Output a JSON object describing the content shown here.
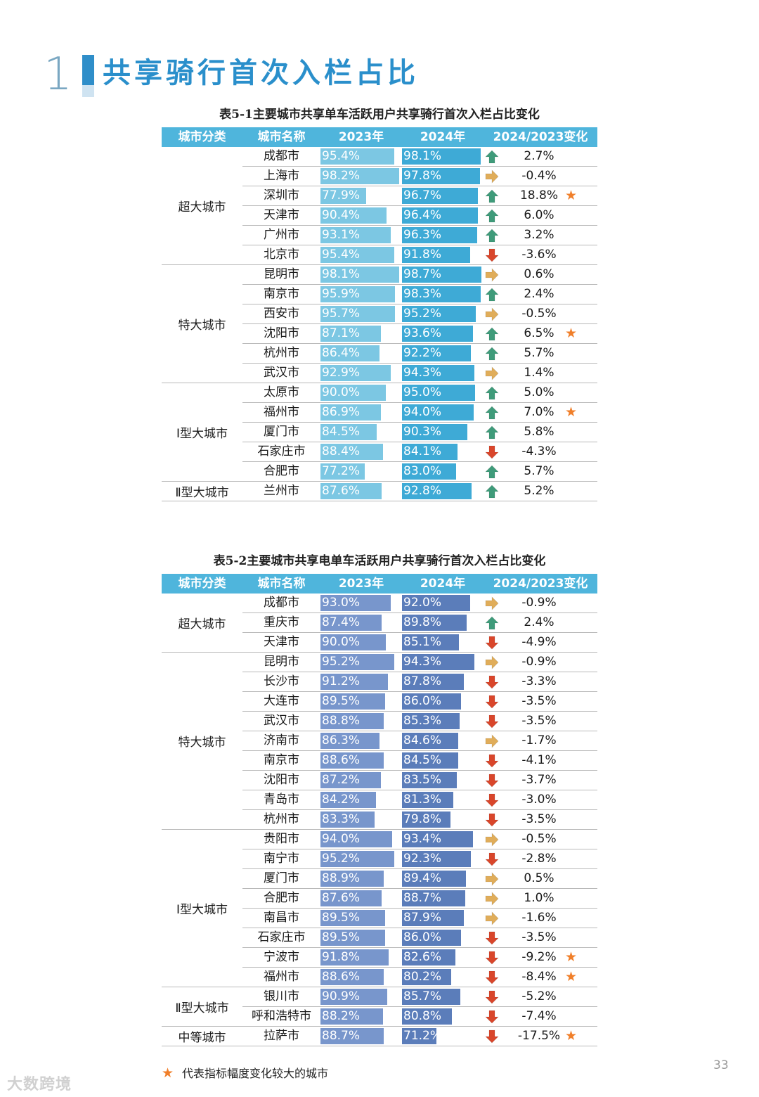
{
  "section": {
    "number": "1",
    "title": "共享骑行首次入栏占比"
  },
  "headers": [
    "城市分类",
    "城市名称",
    "2023年",
    "2024年",
    "2024/2023变化"
  ],
  "colors": {
    "header_bg": "#4fb5dc",
    "t1_bar_2023": "#7cc7e3",
    "t1_bar_2024": "#3eaad6",
    "t2_bar_2023": "#7896cc",
    "t2_bar_2024": "#5b7dba",
    "arrow_up": "#3f9b7a",
    "arrow_down": "#d9462b",
    "arrow_flat": "#e0ad5a",
    "star": "#f07f2a"
  },
  "table1": {
    "title": "表5-1主要城市共享单车活跃用户共享骑行首次入栏占比变化",
    "groups": [
      {
        "category": "超大城市",
        "rows": [
          {
            "city": "成都市",
            "y2023": "95.4%",
            "y2024": "98.1%",
            "change": "2.7%",
            "trend": "up",
            "star": false
          },
          {
            "city": "上海市",
            "y2023": "98.2%",
            "y2024": "97.8%",
            "change": "-0.4%",
            "trend": "flat",
            "star": false
          },
          {
            "city": "深圳市",
            "y2023": "77.9%",
            "y2024": "96.7%",
            "change": "18.8%",
            "trend": "up",
            "star": true
          },
          {
            "city": "天津市",
            "y2023": "90.4%",
            "y2024": "96.4%",
            "change": "6.0%",
            "trend": "up",
            "star": false
          },
          {
            "city": "广州市",
            "y2023": "93.1%",
            "y2024": "96.3%",
            "change": "3.2%",
            "trend": "up",
            "star": false
          },
          {
            "city": "北京市",
            "y2023": "95.4%",
            "y2024": "91.8%",
            "change": "-3.6%",
            "trend": "down",
            "star": false
          }
        ]
      },
      {
        "category": "特大城市",
        "rows": [
          {
            "city": "昆明市",
            "y2023": "98.1%",
            "y2024": "98.7%",
            "change": "0.6%",
            "trend": "flat",
            "star": false
          },
          {
            "city": "南京市",
            "y2023": "95.9%",
            "y2024": "98.3%",
            "change": "2.4%",
            "trend": "up",
            "star": false
          },
          {
            "city": "西安市",
            "y2023": "95.7%",
            "y2024": "95.2%",
            "change": "-0.5%",
            "trend": "flat",
            "star": false
          },
          {
            "city": "沈阳市",
            "y2023": "87.1%",
            "y2024": "93.6%",
            "change": "6.5%",
            "trend": "up",
            "star": true
          },
          {
            "city": "杭州市",
            "y2023": "86.4%",
            "y2024": "92.2%",
            "change": "5.7%",
            "trend": "up",
            "star": false
          },
          {
            "city": "武汉市",
            "y2023": "92.9%",
            "y2024": "94.3%",
            "change": "1.4%",
            "trend": "flat",
            "star": false
          }
        ]
      },
      {
        "category": "Ⅰ型大城市",
        "rows": [
          {
            "city": "太原市",
            "y2023": "90.0%",
            "y2024": "95.0%",
            "change": "5.0%",
            "trend": "up",
            "star": false
          },
          {
            "city": "福州市",
            "y2023": "86.9%",
            "y2024": "94.0%",
            "change": "7.0%",
            "trend": "up",
            "star": true
          },
          {
            "city": "厦门市",
            "y2023": "84.5%",
            "y2024": "90.3%",
            "change": "5.8%",
            "trend": "up",
            "star": false
          },
          {
            "city": "石家庄市",
            "y2023": "88.4%",
            "y2024": "84.1%",
            "change": "-4.3%",
            "trend": "down",
            "star": false
          },
          {
            "city": "合肥市",
            "y2023": "77.2%",
            "y2024": "83.0%",
            "change": "5.7%",
            "trend": "up",
            "star": false
          }
        ]
      },
      {
        "category": "Ⅱ型大城市",
        "rows": [
          {
            "city": "兰州市",
            "y2023": "87.6%",
            "y2024": "92.8%",
            "change": "5.2%",
            "trend": "up",
            "star": false
          }
        ]
      }
    ]
  },
  "table2": {
    "title": "表5-2主要城市共享电单车活跃用户共享骑行首次入栏占比变化",
    "groups": [
      {
        "category": "超大城市",
        "rows": [
          {
            "city": "成都市",
            "y2023": "93.0%",
            "y2024": "92.0%",
            "change": "-0.9%",
            "trend": "flat",
            "star": false
          },
          {
            "city": "重庆市",
            "y2023": "87.4%",
            "y2024": "89.8%",
            "change": "2.4%",
            "trend": "up",
            "star": false
          },
          {
            "city": "天津市",
            "y2023": "90.0%",
            "y2024": "85.1%",
            "change": "-4.9%",
            "trend": "down",
            "star": false
          }
        ]
      },
      {
        "category": "特大城市",
        "rows": [
          {
            "city": "昆明市",
            "y2023": "95.2%",
            "y2024": "94.3%",
            "change": "-0.9%",
            "trend": "flat",
            "star": false
          },
          {
            "city": "长沙市",
            "y2023": "91.2%",
            "y2024": "87.8%",
            "change": "-3.3%",
            "trend": "down",
            "star": false
          },
          {
            "city": "大连市",
            "y2023": "89.5%",
            "y2024": "86.0%",
            "change": "-3.5%",
            "trend": "down",
            "star": false
          },
          {
            "city": "武汉市",
            "y2023": "88.8%",
            "y2024": "85.3%",
            "change": "-3.5%",
            "trend": "down",
            "star": false
          },
          {
            "city": "济南市",
            "y2023": "86.3%",
            "y2024": "84.6%",
            "change": "-1.7%",
            "trend": "flat",
            "star": false
          },
          {
            "city": "南京市",
            "y2023": "88.6%",
            "y2024": "84.5%",
            "change": "-4.1%",
            "trend": "down",
            "star": false
          },
          {
            "city": "沈阳市",
            "y2023": "87.2%",
            "y2024": "83.5%",
            "change": "-3.7%",
            "trend": "down",
            "star": false
          },
          {
            "city": "青岛市",
            "y2023": "84.2%",
            "y2024": "81.3%",
            "change": "-3.0%",
            "trend": "down",
            "star": false
          },
          {
            "city": "杭州市",
            "y2023": "83.3%",
            "y2024": "79.8%",
            "change": "-3.5%",
            "trend": "down",
            "star": false
          }
        ]
      },
      {
        "category": "Ⅰ型大城市",
        "rows": [
          {
            "city": "贵阳市",
            "y2023": "94.0%",
            "y2024": "93.4%",
            "change": "-0.5%",
            "trend": "flat",
            "star": false
          },
          {
            "city": "南宁市",
            "y2023": "95.2%",
            "y2024": "92.3%",
            "change": "-2.8%",
            "trend": "down",
            "star": false
          },
          {
            "city": "厦门市",
            "y2023": "88.9%",
            "y2024": "89.4%",
            "change": "0.5%",
            "trend": "flat",
            "star": false
          },
          {
            "city": "合肥市",
            "y2023": "87.6%",
            "y2024": "88.7%",
            "change": "1.0%",
            "trend": "flat",
            "star": false
          },
          {
            "city": "南昌市",
            "y2023": "89.5%",
            "y2024": "87.9%",
            "change": "-1.6%",
            "trend": "flat",
            "star": false
          },
          {
            "city": "石家庄市",
            "y2023": "89.5%",
            "y2024": "86.0%",
            "change": "-3.5%",
            "trend": "down",
            "star": false
          },
          {
            "city": "宁波市",
            "y2023": "91.8%",
            "y2024": "82.6%",
            "change": "-9.2%",
            "trend": "down",
            "star": true
          },
          {
            "city": "福州市",
            "y2023": "88.6%",
            "y2024": "80.2%",
            "change": "-8.4%",
            "trend": "down",
            "star": true
          }
        ]
      },
      {
        "category": "Ⅱ型大城市",
        "rows": [
          {
            "city": "银川市",
            "y2023": "90.9%",
            "y2024": "85.7%",
            "change": "-5.2%",
            "trend": "down",
            "star": false
          },
          {
            "city": "呼和浩特市",
            "y2023": "88.2%",
            "y2024": "80.8%",
            "change": "-7.4%",
            "trend": "down",
            "star": false
          }
        ]
      },
      {
        "category": "中等城市",
        "rows": [
          {
            "city": "拉萨市",
            "y2023": "88.7%",
            "y2024": "71.2%",
            "change": "-17.5%",
            "trend": "down",
            "star": true
          }
        ]
      }
    ]
  },
  "legend": {
    "star": "★",
    "text": "代表指标幅度变化较大的城市"
  },
  "page_number": "33",
  "watermark": "大数跨境"
}
